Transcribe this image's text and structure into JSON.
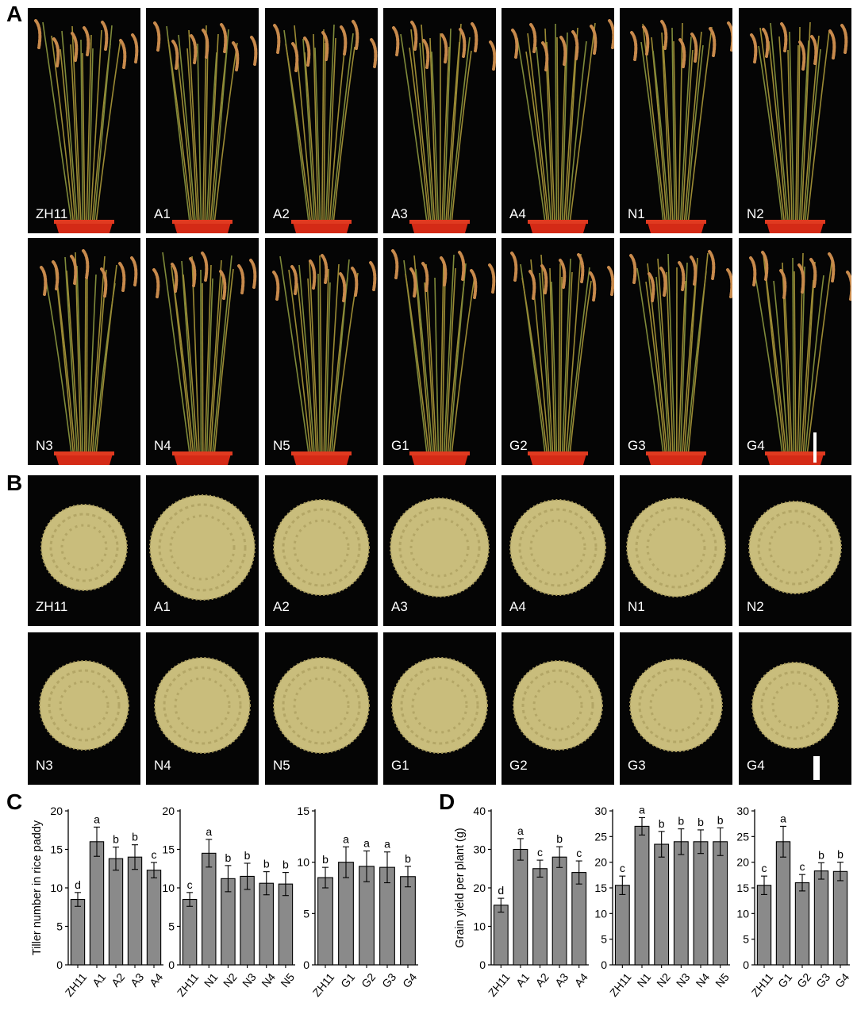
{
  "panels": {
    "A": "A",
    "B": "B",
    "C": "C",
    "D": "D"
  },
  "plant_photos": {
    "row1": [
      "ZH11",
      "A1",
      "A2",
      "A3",
      "A4",
      "N1",
      "N2"
    ],
    "row2": [
      "N3",
      "N4",
      "N5",
      "G1",
      "G2",
      "G3",
      "G4"
    ]
  },
  "grain_photos": {
    "row1": [
      "ZH11",
      "A1",
      "A2",
      "A3",
      "A4",
      "N1",
      "N2"
    ],
    "row2": [
      "N3",
      "N4",
      "N5",
      "G1",
      "G2",
      "G3",
      "G4"
    ]
  },
  "colors": {
    "bar": "#8a8a8a",
    "photo_bg": "#050505",
    "grain": "#c9bd7c",
    "pot": "#d42a16"
  },
  "chart_data": [
    {
      "type": "bar",
      "panel": "C",
      "ylabel": "Tiller number in rice paddy",
      "ylim": [
        0,
        20
      ],
      "yticks": [
        0,
        5,
        10,
        15,
        20
      ],
      "categories": [
        "ZH11",
        "A1",
        "A2",
        "A3",
        "A4"
      ],
      "values": [
        8.5,
        16.0,
        13.8,
        14.0,
        12.3
      ],
      "errors": [
        0.9,
        1.9,
        1.5,
        1.6,
        1.0
      ],
      "letters": [
        "d",
        "a",
        "b",
        "b",
        "c"
      ]
    },
    {
      "type": "bar",
      "panel": "C",
      "ylim": [
        0,
        20
      ],
      "yticks": [
        0,
        5,
        10,
        15,
        20
      ],
      "categories": [
        "ZH11",
        "N1",
        "N2",
        "N3",
        "N4",
        "N5"
      ],
      "values": [
        8.5,
        14.5,
        11.2,
        11.5,
        10.6,
        10.5
      ],
      "errors": [
        0.9,
        1.8,
        1.7,
        1.7,
        1.5,
        1.5
      ],
      "letters": [
        "c",
        "a",
        "b",
        "b",
        "b",
        "b"
      ]
    },
    {
      "type": "bar",
      "panel": "C",
      "ylim": [
        0,
        15
      ],
      "yticks": [
        0,
        5,
        10,
        15
      ],
      "categories": [
        "ZH11",
        "G1",
        "G2",
        "G3",
        "G4"
      ],
      "values": [
        8.5,
        10.0,
        9.6,
        9.5,
        8.6
      ],
      "errors": [
        1.0,
        1.5,
        1.5,
        1.5,
        1.0
      ],
      "letters": [
        "b",
        "a",
        "a",
        "a",
        "b"
      ]
    },
    {
      "type": "bar",
      "panel": "D",
      "ylabel": "Grain yield per plant (g)",
      "ylim": [
        0,
        40
      ],
      "yticks": [
        0,
        10,
        20,
        30,
        40
      ],
      "categories": [
        "ZH11",
        "A1",
        "A2",
        "A3",
        "A4"
      ],
      "values": [
        15.5,
        30.0,
        25.0,
        28.0,
        24.0
      ],
      "errors": [
        1.8,
        2.8,
        2.2,
        2.7,
        3.0
      ],
      "letters": [
        "d",
        "a",
        "c",
        "b",
        "c"
      ]
    },
    {
      "type": "bar",
      "panel": "D",
      "ylim": [
        0,
        30
      ],
      "yticks": [
        0,
        5,
        10,
        15,
        20,
        25,
        30
      ],
      "categories": [
        "ZH11",
        "N1",
        "N2",
        "N3",
        "N4",
        "N5"
      ],
      "values": [
        15.5,
        27.0,
        23.5,
        24.0,
        24.0,
        24.0
      ],
      "errors": [
        1.8,
        1.7,
        2.5,
        2.5,
        2.3,
        2.7
      ],
      "letters": [
        "c",
        "a",
        "b",
        "b",
        "b",
        "b"
      ]
    },
    {
      "type": "bar",
      "panel": "D",
      "ylim": [
        0,
        30
      ],
      "yticks": [
        0,
        5,
        10,
        15,
        20,
        25,
        30
      ],
      "categories": [
        "ZH11",
        "G1",
        "G2",
        "G3",
        "G4"
      ],
      "values": [
        15.5,
        24.0,
        16.0,
        18.3,
        18.2
      ],
      "errors": [
        1.8,
        3.0,
        1.6,
        1.6,
        1.8
      ],
      "letters": [
        "c",
        "a",
        "c",
        "b",
        "b"
      ]
    }
  ]
}
